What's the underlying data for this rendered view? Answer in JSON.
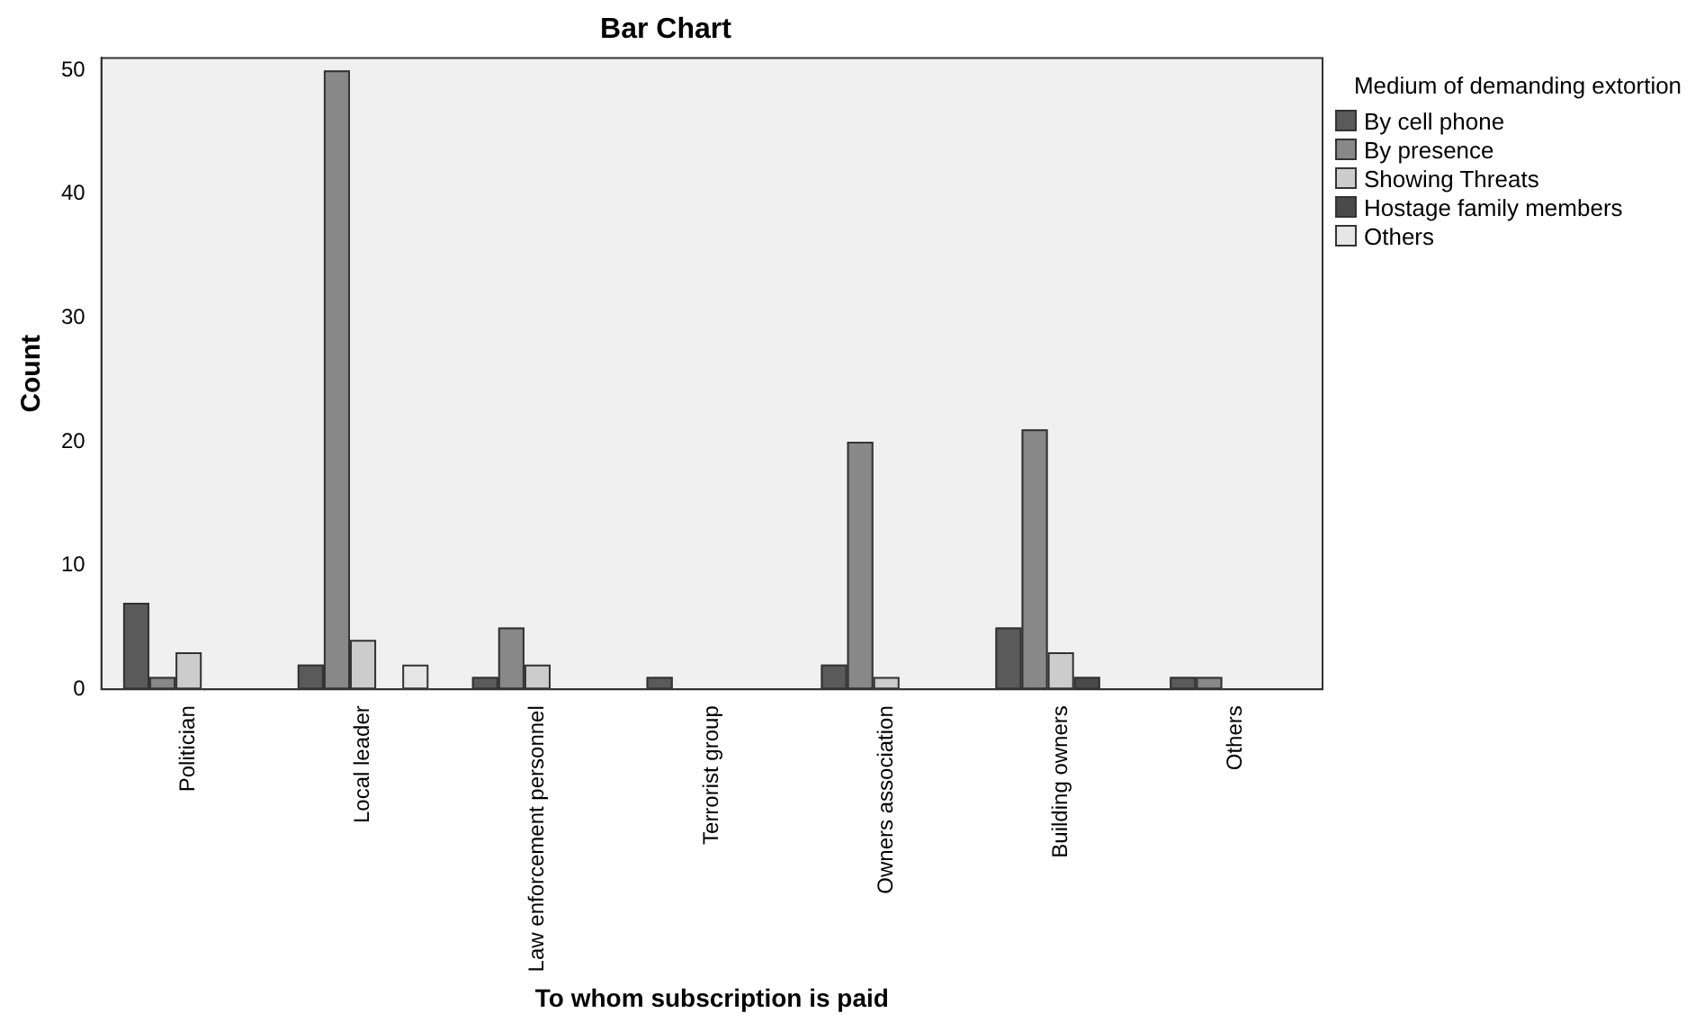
{
  "chart_data": {
    "type": "bar",
    "title": "Bar Chart",
    "xlabel": "To whom subscription is paid",
    "ylabel": "Count",
    "legend_title": "Medium of demanding extortion",
    "categories": [
      "Politician",
      "Local leader",
      "Law enforcement personnel",
      "Terrorist group",
      "Owners association",
      "Building owners",
      "Others"
    ],
    "series": [
      {
        "name": "By cell phone",
        "color": "#5a5a5a",
        "values": [
          7,
          2,
          1,
          1,
          2,
          5,
          1
        ]
      },
      {
        "name": "By presence",
        "color": "#888888",
        "values": [
          1,
          50,
          5,
          null,
          20,
          21,
          1
        ]
      },
      {
        "name": "Showing Threats",
        "color": "#cccccc",
        "values": [
          3,
          4,
          2,
          null,
          1,
          3,
          null
        ]
      },
      {
        "name": "Hostage family members",
        "color": "#4a4a4a",
        "values": [
          null,
          null,
          null,
          null,
          null,
          1,
          null
        ]
      },
      {
        "name": "Others",
        "color": "#e6e6e6",
        "values": [
          null,
          2,
          null,
          null,
          null,
          null,
          null
        ]
      }
    ],
    "ylim": [
      0,
      51
    ],
    "yticks": [
      0,
      10,
      20,
      30,
      40,
      50
    ],
    "grid": false,
    "legend": "right"
  }
}
